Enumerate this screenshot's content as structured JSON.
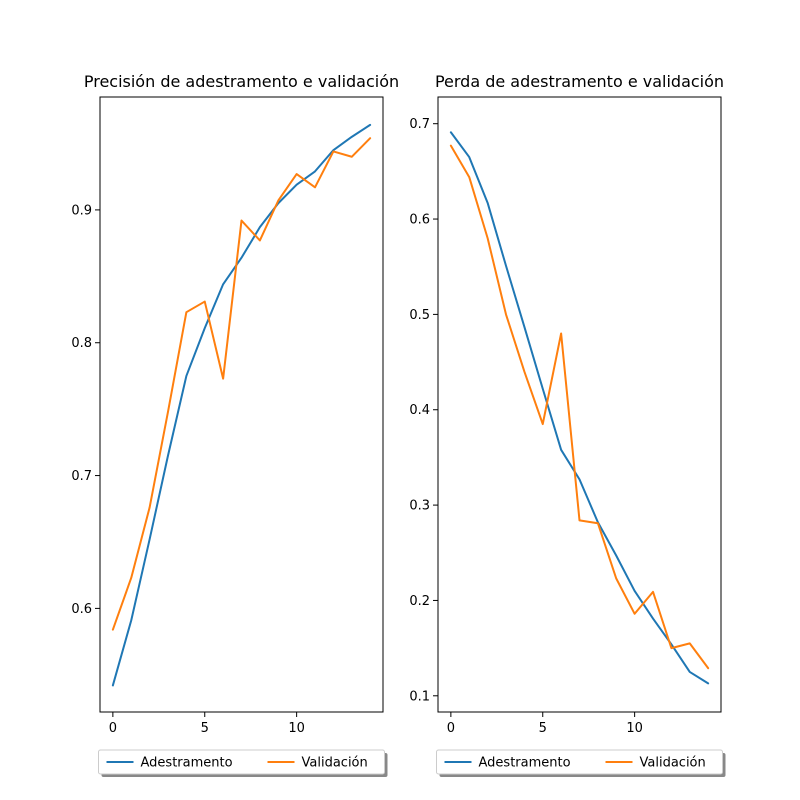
{
  "chart_data": [
    {
      "type": "line",
      "title": "Precisión de adestramento e validación",
      "xlabel": "",
      "ylabel": "",
      "xlim": [
        -0.7,
        14.7
      ],
      "ylim": [
        0.522,
        0.985
      ],
      "xticks": [
        0,
        5,
        10
      ],
      "yticks": [
        0.6,
        0.7,
        0.8,
        0.9
      ],
      "x": [
        0,
        1,
        2,
        3,
        4,
        5,
        6,
        7,
        8,
        9,
        10,
        11,
        12,
        13,
        14
      ],
      "series": [
        {
          "name": "Adestramento",
          "color": "#1f77b4",
          "values": [
            0.542,
            0.591,
            0.652,
            0.715,
            0.775,
            0.811,
            0.844,
            0.864,
            0.887,
            0.905,
            0.919,
            0.929,
            0.945,
            0.955,
            0.964
          ]
        },
        {
          "name": "Validación",
          "color": "#ff7f0e",
          "values": [
            0.584,
            0.623,
            0.676,
            0.748,
            0.823,
            0.831,
            0.773,
            0.892,
            0.877,
            0.907,
            0.927,
            0.917,
            0.944,
            0.94,
            0.954
          ]
        }
      ],
      "legend": {
        "placement": "bottom-center",
        "entries": [
          "Adestramento",
          "Validación"
        ]
      }
    },
    {
      "type": "line",
      "title": "Perda de adestramento e validación",
      "xlabel": "",
      "ylabel": "",
      "xlim": [
        -0.7,
        14.7
      ],
      "ylim": [
        0.083,
        0.728
      ],
      "xticks": [
        0,
        5,
        10
      ],
      "yticks": [
        0.1,
        0.2,
        0.3,
        0.4,
        0.5,
        0.6,
        0.7
      ],
      "x": [
        0,
        1,
        2,
        3,
        4,
        5,
        6,
        7,
        8,
        9,
        10,
        11,
        12,
        13,
        14
      ],
      "series": [
        {
          "name": "Adestramento",
          "color": "#1f77b4",
          "values": [
            0.691,
            0.665,
            0.617,
            0.551,
            0.487,
            0.422,
            0.358,
            0.327,
            0.282,
            0.247,
            0.21,
            0.181,
            0.154,
            0.125,
            0.113
          ]
        },
        {
          "name": "Validación",
          "color": "#ff7f0e",
          "values": [
            0.677,
            0.644,
            0.58,
            0.5,
            0.44,
            0.385,
            0.48,
            0.284,
            0.281,
            0.223,
            0.186,
            0.209,
            0.15,
            0.155,
            0.129
          ]
        }
      ],
      "legend": {
        "placement": "bottom-center",
        "entries": [
          "Adestramento",
          "Validación"
        ]
      }
    }
  ]
}
